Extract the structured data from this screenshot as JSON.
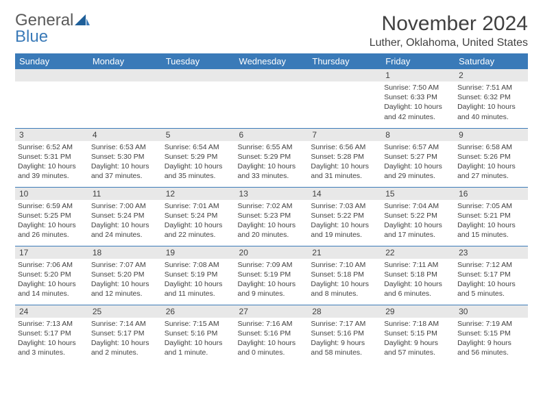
{
  "logo": {
    "text1": "General",
    "text2": "Blue"
  },
  "title": "November 2024",
  "location": "Luther, Oklahoma, United States",
  "colors": {
    "accent": "#3a7ab8",
    "header_text": "#ffffff",
    "daynum_bg": "#e8e8e8",
    "text": "#404040"
  },
  "weekdays": [
    "Sunday",
    "Monday",
    "Tuesday",
    "Wednesday",
    "Thursday",
    "Friday",
    "Saturday"
  ],
  "weeks": [
    [
      null,
      null,
      null,
      null,
      null,
      {
        "n": "1",
        "sr": "Sunrise: 7:50 AM",
        "ss": "Sunset: 6:33 PM",
        "dl": "Daylight: 10 hours and 42 minutes."
      },
      {
        "n": "2",
        "sr": "Sunrise: 7:51 AM",
        "ss": "Sunset: 6:32 PM",
        "dl": "Daylight: 10 hours and 40 minutes."
      }
    ],
    [
      {
        "n": "3",
        "sr": "Sunrise: 6:52 AM",
        "ss": "Sunset: 5:31 PM",
        "dl": "Daylight: 10 hours and 39 minutes."
      },
      {
        "n": "4",
        "sr": "Sunrise: 6:53 AM",
        "ss": "Sunset: 5:30 PM",
        "dl": "Daylight: 10 hours and 37 minutes."
      },
      {
        "n": "5",
        "sr": "Sunrise: 6:54 AM",
        "ss": "Sunset: 5:29 PM",
        "dl": "Daylight: 10 hours and 35 minutes."
      },
      {
        "n": "6",
        "sr": "Sunrise: 6:55 AM",
        "ss": "Sunset: 5:29 PM",
        "dl": "Daylight: 10 hours and 33 minutes."
      },
      {
        "n": "7",
        "sr": "Sunrise: 6:56 AM",
        "ss": "Sunset: 5:28 PM",
        "dl": "Daylight: 10 hours and 31 minutes."
      },
      {
        "n": "8",
        "sr": "Sunrise: 6:57 AM",
        "ss": "Sunset: 5:27 PM",
        "dl": "Daylight: 10 hours and 29 minutes."
      },
      {
        "n": "9",
        "sr": "Sunrise: 6:58 AM",
        "ss": "Sunset: 5:26 PM",
        "dl": "Daylight: 10 hours and 27 minutes."
      }
    ],
    [
      {
        "n": "10",
        "sr": "Sunrise: 6:59 AM",
        "ss": "Sunset: 5:25 PM",
        "dl": "Daylight: 10 hours and 26 minutes."
      },
      {
        "n": "11",
        "sr": "Sunrise: 7:00 AM",
        "ss": "Sunset: 5:24 PM",
        "dl": "Daylight: 10 hours and 24 minutes."
      },
      {
        "n": "12",
        "sr": "Sunrise: 7:01 AM",
        "ss": "Sunset: 5:24 PM",
        "dl": "Daylight: 10 hours and 22 minutes."
      },
      {
        "n": "13",
        "sr": "Sunrise: 7:02 AM",
        "ss": "Sunset: 5:23 PM",
        "dl": "Daylight: 10 hours and 20 minutes."
      },
      {
        "n": "14",
        "sr": "Sunrise: 7:03 AM",
        "ss": "Sunset: 5:22 PM",
        "dl": "Daylight: 10 hours and 19 minutes."
      },
      {
        "n": "15",
        "sr": "Sunrise: 7:04 AM",
        "ss": "Sunset: 5:22 PM",
        "dl": "Daylight: 10 hours and 17 minutes."
      },
      {
        "n": "16",
        "sr": "Sunrise: 7:05 AM",
        "ss": "Sunset: 5:21 PM",
        "dl": "Daylight: 10 hours and 15 minutes."
      }
    ],
    [
      {
        "n": "17",
        "sr": "Sunrise: 7:06 AM",
        "ss": "Sunset: 5:20 PM",
        "dl": "Daylight: 10 hours and 14 minutes."
      },
      {
        "n": "18",
        "sr": "Sunrise: 7:07 AM",
        "ss": "Sunset: 5:20 PM",
        "dl": "Daylight: 10 hours and 12 minutes."
      },
      {
        "n": "19",
        "sr": "Sunrise: 7:08 AM",
        "ss": "Sunset: 5:19 PM",
        "dl": "Daylight: 10 hours and 11 minutes."
      },
      {
        "n": "20",
        "sr": "Sunrise: 7:09 AM",
        "ss": "Sunset: 5:19 PM",
        "dl": "Daylight: 10 hours and 9 minutes."
      },
      {
        "n": "21",
        "sr": "Sunrise: 7:10 AM",
        "ss": "Sunset: 5:18 PM",
        "dl": "Daylight: 10 hours and 8 minutes."
      },
      {
        "n": "22",
        "sr": "Sunrise: 7:11 AM",
        "ss": "Sunset: 5:18 PM",
        "dl": "Daylight: 10 hours and 6 minutes."
      },
      {
        "n": "23",
        "sr": "Sunrise: 7:12 AM",
        "ss": "Sunset: 5:17 PM",
        "dl": "Daylight: 10 hours and 5 minutes."
      }
    ],
    [
      {
        "n": "24",
        "sr": "Sunrise: 7:13 AM",
        "ss": "Sunset: 5:17 PM",
        "dl": "Daylight: 10 hours and 3 minutes."
      },
      {
        "n": "25",
        "sr": "Sunrise: 7:14 AM",
        "ss": "Sunset: 5:17 PM",
        "dl": "Daylight: 10 hours and 2 minutes."
      },
      {
        "n": "26",
        "sr": "Sunrise: 7:15 AM",
        "ss": "Sunset: 5:16 PM",
        "dl": "Daylight: 10 hours and 1 minute."
      },
      {
        "n": "27",
        "sr": "Sunrise: 7:16 AM",
        "ss": "Sunset: 5:16 PM",
        "dl": "Daylight: 10 hours and 0 minutes."
      },
      {
        "n": "28",
        "sr": "Sunrise: 7:17 AM",
        "ss": "Sunset: 5:16 PM",
        "dl": "Daylight: 9 hours and 58 minutes."
      },
      {
        "n": "29",
        "sr": "Sunrise: 7:18 AM",
        "ss": "Sunset: 5:15 PM",
        "dl": "Daylight: 9 hours and 57 minutes."
      },
      {
        "n": "30",
        "sr": "Sunrise: 7:19 AM",
        "ss": "Sunset: 5:15 PM",
        "dl": "Daylight: 9 hours and 56 minutes."
      }
    ]
  ]
}
